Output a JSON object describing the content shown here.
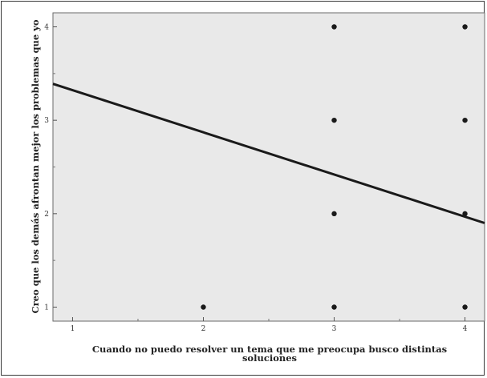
{
  "chart_data": {
    "type": "scatter",
    "xlabel_lines": [
      "Cuando no puedo resolver un tema que me preocupa busco distintas",
      "soluciones"
    ],
    "ylabel": "Creo que los demás afrontan mejor los problemas que yo",
    "xlim": [
      0.85,
      4.15
    ],
    "ylim": [
      0.85,
      4.15
    ],
    "xticks": [
      "1",
      "2",
      "3",
      "4"
    ],
    "yticks": [
      "1",
      "2",
      "3",
      "4"
    ],
    "points": [
      {
        "x": 2,
        "y": 1
      },
      {
        "x": 3,
        "y": 1
      },
      {
        "x": 3,
        "y": 2
      },
      {
        "x": 3,
        "y": 3
      },
      {
        "x": 3,
        "y": 4
      },
      {
        "x": 4,
        "y": 1
      },
      {
        "x": 4,
        "y": 2
      },
      {
        "x": 4,
        "y": 3
      },
      {
        "x": 4,
        "y": 4
      }
    ],
    "fit_line": {
      "x": [
        0.85,
        4.15
      ],
      "y": [
        3.39,
        1.9
      ]
    },
    "grid": false,
    "legend": "none",
    "colors": {
      "plot_background": "#e9e9e9",
      "marker": "#1a1a1a",
      "fit_line": "#1a1a1a"
    }
  }
}
